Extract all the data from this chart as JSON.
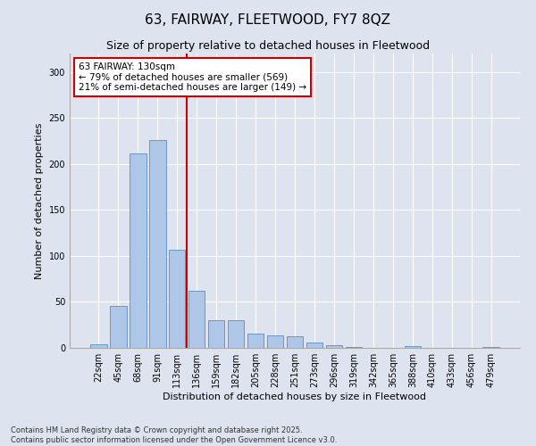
{
  "title1": "63, FAIRWAY, FLEETWOOD, FY7 8QZ",
  "title2": "Size of property relative to detached houses in Fleetwood",
  "xlabel": "Distribution of detached houses by size in Fleetwood",
  "ylabel": "Number of detached properties",
  "categories": [
    "22sqm",
    "45sqm",
    "68sqm",
    "91sqm",
    "113sqm",
    "136sqm",
    "159sqm",
    "182sqm",
    "205sqm",
    "228sqm",
    "251sqm",
    "273sqm",
    "296sqm",
    "319sqm",
    "342sqm",
    "365sqm",
    "388sqm",
    "410sqm",
    "433sqm",
    "456sqm",
    "479sqm"
  ],
  "values": [
    4,
    46,
    211,
    226,
    107,
    62,
    30,
    30,
    16,
    14,
    13,
    6,
    3,
    1,
    0,
    0,
    2,
    0,
    0,
    0,
    1
  ],
  "bar_color": "#aec6e8",
  "bar_edge_color": "#5a8fc2",
  "vline_x_index": 5,
  "vline_color": "#cc0000",
  "annotation_text": "63 FAIRWAY: 130sqm\n← 79% of detached houses are smaller (569)\n21% of semi-detached houses are larger (149) →",
  "annotation_box_color": "#ffffff",
  "annotation_box_edge": "#cc0000",
  "ylim": [
    0,
    320
  ],
  "yticks": [
    0,
    50,
    100,
    150,
    200,
    250,
    300
  ],
  "footnote": "Contains HM Land Registry data © Crown copyright and database right 2025.\nContains public sector information licensed under the Open Government Licence v3.0.",
  "bg_color": "#dde4ef",
  "plot_bg_color": "#dde4ef",
  "title1_fontsize": 11,
  "title2_fontsize": 9,
  "xlabel_fontsize": 8,
  "ylabel_fontsize": 8,
  "tick_fontsize": 7,
  "footnote_fontsize": 6,
  "annotation_fontsize": 7.5
}
